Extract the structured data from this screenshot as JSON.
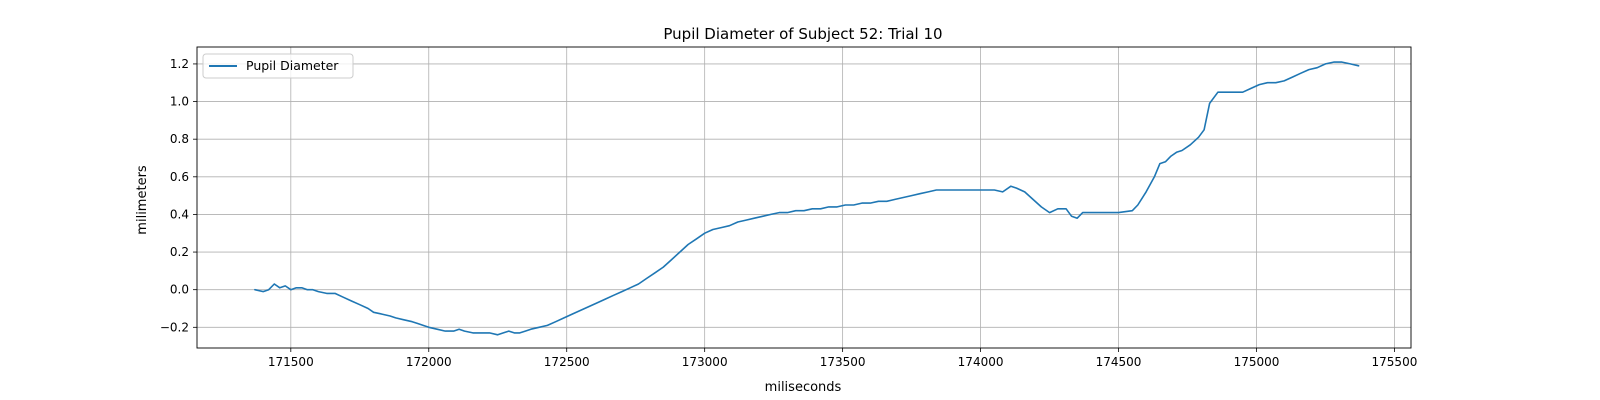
{
  "chart_data": {
    "type": "line",
    "title": "Pupil Diameter of Subject 52: Trial 10",
    "xlabel": "miliseconds",
    "ylabel": "milimeters",
    "xlim": [
      171160,
      175560
    ],
    "ylim": [
      -0.31,
      1.29
    ],
    "xticks": [
      171500,
      172000,
      172500,
      173000,
      173500,
      174000,
      174500,
      175000,
      175500
    ],
    "yticks": [
      -0.2,
      0.0,
      0.2,
      0.4,
      0.6,
      0.8,
      1.0,
      1.2
    ],
    "xtick_labels": [
      "171500",
      "172000",
      "172500",
      "173000",
      "173500",
      "174000",
      "174500",
      "175000",
      "175500"
    ],
    "ytick_labels": [
      "−0.2",
      "0.0",
      "0.2",
      "0.4",
      "0.6",
      "0.8",
      "1.0",
      "1.2"
    ],
    "grid": true,
    "legend_position": "top-left",
    "series": [
      {
        "name": "Pupil Diameter",
        "color": "#1f77b4",
        "x": [
          171370,
          171400,
          171420,
          171440,
          171460,
          171480,
          171500,
          171520,
          171540,
          171560,
          171580,
          171600,
          171630,
          171660,
          171690,
          171720,
          171750,
          171780,
          171800,
          171830,
          171860,
          171880,
          171910,
          171940,
          171960,
          171980,
          172000,
          172030,
          172060,
          172090,
          172110,
          172130,
          172160,
          172190,
          172220,
          172250,
          172270,
          172290,
          172310,
          172330,
          172350,
          172370,
          172400,
          172430,
          172460,
          172490,
          172520,
          172550,
          172580,
          172610,
          172640,
          172670,
          172700,
          172730,
          172760,
          172790,
          172820,
          172850,
          172880,
          172910,
          172940,
          172970,
          173000,
          173030,
          173060,
          173090,
          173120,
          173150,
          173180,
          173210,
          173240,
          173270,
          173300,
          173330,
          173360,
          173390,
          173420,
          173450,
          173480,
          173510,
          173540,
          173570,
          173600,
          173630,
          173660,
          173690,
          173720,
          173750,
          173780,
          173810,
          173840,
          173870,
          173900,
          173930,
          173960,
          173990,
          174020,
          174050,
          174080,
          174110,
          174130,
          174160,
          174190,
          174220,
          174250,
          174280,
          174310,
          174330,
          174350,
          174370,
          174400,
          174450,
          174500,
          174550,
          174570,
          174600,
          174630,
          174650,
          174670,
          174690,
          174710,
          174730,
          174760,
          174790,
          174810,
          174830,
          174860,
          174900,
          174950,
          174980,
          175010,
          175040,
          175070,
          175100,
          175130,
          175160,
          175190,
          175220,
          175250,
          175280,
          175310,
          175340,
          175370
        ],
        "y": [
          0.0,
          -0.01,
          0.0,
          0.03,
          0.01,
          0.02,
          0.0,
          0.01,
          0.01,
          0.0,
          0.0,
          -0.01,
          -0.02,
          -0.02,
          -0.04,
          -0.06,
          -0.08,
          -0.1,
          -0.12,
          -0.13,
          -0.14,
          -0.15,
          -0.16,
          -0.17,
          -0.18,
          -0.19,
          -0.2,
          -0.21,
          -0.22,
          -0.22,
          -0.21,
          -0.22,
          -0.23,
          -0.23,
          -0.23,
          -0.24,
          -0.23,
          -0.22,
          -0.23,
          -0.23,
          -0.22,
          -0.21,
          -0.2,
          -0.19,
          -0.17,
          -0.15,
          -0.13,
          -0.11,
          -0.09,
          -0.07,
          -0.05,
          -0.03,
          -0.01,
          0.01,
          0.03,
          0.06,
          0.09,
          0.12,
          0.16,
          0.2,
          0.24,
          0.27,
          0.3,
          0.32,
          0.33,
          0.34,
          0.36,
          0.37,
          0.38,
          0.39,
          0.4,
          0.41,
          0.41,
          0.42,
          0.42,
          0.43,
          0.43,
          0.44,
          0.44,
          0.45,
          0.45,
          0.46,
          0.46,
          0.47,
          0.47,
          0.48,
          0.49,
          0.5,
          0.51,
          0.52,
          0.53,
          0.53,
          0.53,
          0.53,
          0.53,
          0.53,
          0.53,
          0.53,
          0.52,
          0.55,
          0.54,
          0.52,
          0.48,
          0.44,
          0.41,
          0.43,
          0.43,
          0.39,
          0.38,
          0.41,
          0.41,
          0.41,
          0.41,
          0.42,
          0.45,
          0.52,
          0.6,
          0.67,
          0.68,
          0.71,
          0.73,
          0.74,
          0.77,
          0.81,
          0.85,
          0.99,
          1.05,
          1.05,
          1.05,
          1.07,
          1.09,
          1.1,
          1.1,
          1.11,
          1.13,
          1.15,
          1.17,
          1.18,
          1.2,
          1.21,
          1.21,
          1.2,
          1.19
        ]
      }
    ]
  }
}
